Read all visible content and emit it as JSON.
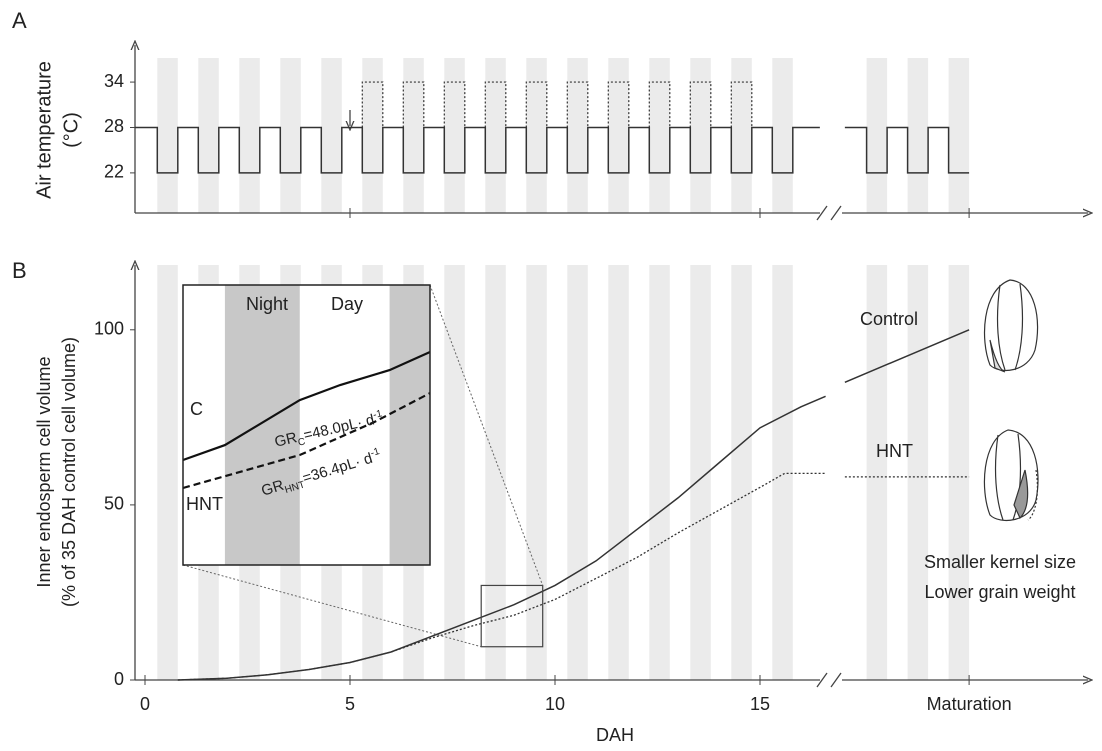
{
  "chart_data": [
    {
      "type": "step",
      "label": "A",
      "ylabel": [
        "Air temperature",
        "(°C)"
      ],
      "xlim": [
        -0.24,
        23.5
      ],
      "xticks": [
        5,
        15,
        20.1
      ],
      "ylim": [
        16.7,
        38.9
      ],
      "yticks": [
        22,
        28,
        34
      ],
      "nights": [
        [
          0.3,
          0.8
        ],
        [
          1.3,
          1.8
        ],
        [
          2.3,
          2.8
        ],
        [
          3.3,
          3.8
        ],
        [
          4.3,
          4.8
        ],
        [
          5.3,
          5.8
        ],
        [
          6.3,
          6.8
        ],
        [
          7.3,
          7.8
        ],
        [
          8.3,
          8.8
        ],
        [
          9.3,
          9.8
        ],
        [
          10.3,
          10.8
        ],
        [
          11.3,
          11.8
        ],
        [
          12.3,
          12.8
        ],
        [
          13.3,
          13.8
        ],
        [
          14.3,
          14.8
        ],
        [
          15.3,
          15.8
        ],
        [
          17.6,
          18.1
        ],
        [
          18.6,
          19.1
        ],
        [
          19.6,
          20.1
        ]
      ],
      "series": [
        {
          "color": "#333333",
          "style": "solid",
          "day": 28,
          "night": 22,
          "segments": [
            [
              -0.24,
              16.46
            ],
            [
              17.07,
              20.1
            ]
          ]
        },
        {
          "color": "#333333",
          "style": "dotted",
          "day": 28,
          "night": 34,
          "nights": [
            5,
            6,
            7,
            8,
            9,
            10,
            11,
            12,
            13,
            14
          ]
        }
      ]
    },
    {
      "type": "line",
      "label": "B",
      "ylabel": [
        "Inner endosperm cell volume",
        "(% of 35 DAH control cell volume)"
      ],
      "xlabel": "DAH",
      "xlim": [
        -0.24,
        23.5
      ],
      "xticks": [
        0,
        5,
        10,
        15,
        {
          "value": 20.1,
          "label": "Maturation"
        }
      ],
      "ylim": [
        0,
        118.5
      ],
      "yticks": [
        0,
        50,
        100
      ],
      "nights": [
        [
          0.3,
          0.8
        ],
        [
          1.3,
          1.8
        ],
        [
          2.3,
          2.8
        ],
        [
          3.3,
          3.8
        ],
        [
          4.3,
          4.8
        ],
        [
          5.3,
          5.8
        ],
        [
          6.3,
          6.8
        ],
        [
          7.3,
          7.8
        ],
        [
          8.3,
          8.8
        ],
        [
          9.3,
          9.8
        ],
        [
          10.3,
          10.8
        ],
        [
          11.3,
          11.8
        ],
        [
          12.3,
          12.8
        ],
        [
          13.3,
          13.8
        ],
        [
          14.3,
          14.8
        ],
        [
          15.3,
          15.8
        ],
        [
          17.6,
          18.1
        ],
        [
          18.6,
          19.1
        ],
        [
          19.6,
          20.1
        ]
      ],
      "series": [
        {
          "name": "Control",
          "color": "#333333",
          "style": "solid",
          "x": [
            0.8,
            2,
            3,
            4,
            5,
            6,
            7,
            8,
            9,
            10,
            11,
            12,
            13,
            14,
            15,
            16,
            16.6,
            16.85,
            17.07,
            20.1
          ],
          "values": [
            0,
            0.5,
            1.5,
            3,
            5,
            8,
            12.5,
            17,
            21.5,
            27,
            34,
            43,
            52,
            62,
            72,
            78,
            81,
            null,
            85,
            100
          ]
        },
        {
          "name": "HNT",
          "color": "#333333",
          "style": "dotted",
          "x": [
            0.8,
            2,
            3,
            4,
            5,
            6,
            7,
            8,
            9,
            10,
            11,
            12,
            13,
            14,
            15,
            15.6,
            16.6,
            16.85,
            17.07,
            20.1
          ],
          "values": [
            0,
            0.5,
            1.5,
            3,
            5,
            8,
            12,
            15.5,
            18.5,
            23,
            29,
            35,
            42,
            48.5,
            55,
            59,
            59,
            null,
            58,
            58
          ]
        }
      ],
      "zoom_box": {
        "x": [
          8.2,
          9.7
        ],
        "y": [
          9.5,
          27
        ]
      },
      "notes": [
        "Smaller kernel size",
        "Lower grain weight"
      ],
      "inset": {
        "xlim": [
          8.02,
          9.67
        ],
        "ylim": [
          10,
          28
        ],
        "night_label": "Night",
        "day_label": "Day",
        "nights": [
          [
            8.3,
            8.8
          ],
          [
            9.4,
            9.9
          ]
        ],
        "series": [
          {
            "name": "C",
            "color": "#111111",
            "style": "solid",
            "x": [
              8.02,
              8.3,
              8.8,
              9.07,
              9.4,
              9.67
            ],
            "values": [
              16.75,
              17.71,
              20.6,
              21.57,
              22.53,
              23.69
            ]
          },
          {
            "name": "HNT",
            "color": "#111111",
            "style": "dashed",
            "x": [
              8.02,
              8.8,
              9.3,
              9.67
            ],
            "values": [
              14.95,
              17.07,
              19.2,
              21.05
            ]
          }
        ],
        "growth_rates": [
          {
            "symbol": "GR",
            "sub": "C",
            "text": "=48.0pL· d",
            "sup": "-1"
          },
          {
            "symbol": "GR",
            "sub": "HNT",
            "text": "=36.4pL· d",
            "sup": "-1"
          }
        ]
      }
    }
  ]
}
